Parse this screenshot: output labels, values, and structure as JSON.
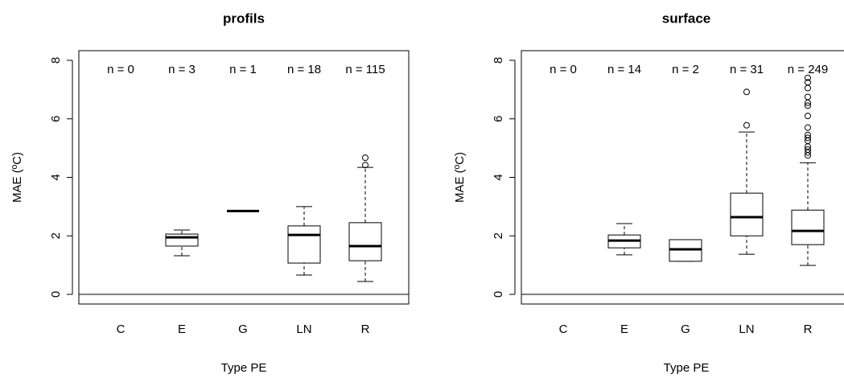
{
  "chart_data": [
    {
      "type": "box",
      "title": "profils",
      "x_label": "Type PE",
      "y_label": "MAE (ºC)",
      "categories": [
        "C",
        "E",
        "G",
        "LN",
        "R"
      ],
      "count_labels": [
        "n = 0",
        "n = 3",
        "n = 1",
        "n = 18",
        "n = 115"
      ],
      "boxes": [
        null,
        {
          "min": 1.32,
          "q1": 1.65,
          "median": 1.95,
          "q3": 2.06,
          "max": 2.2,
          "outliers": []
        },
        {
          "min": 2.85,
          "q1": 2.85,
          "median": 2.85,
          "q3": 2.85,
          "max": 2.85,
          "outliers": []
        },
        {
          "min": 0.66,
          "q1": 1.07,
          "median": 2.03,
          "q3": 2.34,
          "max": 3.0,
          "outliers": []
        },
        {
          "min": 0.44,
          "q1": 1.15,
          "median": 1.65,
          "q3": 2.45,
          "max": 4.34,
          "outliers": [
            4.42,
            4.67
          ]
        }
      ],
      "hline": 0,
      "ylim": [
        -0.33,
        8.33
      ],
      "yticks": [
        0,
        2,
        4,
        6,
        8
      ]
    },
    {
      "type": "box",
      "title": "surface",
      "x_label": "Type PE",
      "y_label": "MAE (ºC)",
      "categories": [
        "C",
        "E",
        "G",
        "LN",
        "R"
      ],
      "count_labels": [
        "n = 0",
        "n = 14",
        "n = 2",
        "n = 31",
        "n = 249"
      ],
      "boxes": [
        null,
        {
          "min": 1.35,
          "q1": 1.59,
          "median": 1.84,
          "q3": 2.03,
          "max": 2.42,
          "outliers": []
        },
        {
          "min": 1.13,
          "q1": 1.13,
          "median": 1.54,
          "q3": 1.87,
          "max": 1.87,
          "outliers": []
        },
        {
          "min": 1.37,
          "q1": 2.0,
          "median": 2.64,
          "q3": 3.46,
          "max": 5.55,
          "outliers": [
            5.78,
            6.92
          ]
        },
        {
          "min": 0.99,
          "q1": 1.7,
          "median": 2.17,
          "q3": 2.88,
          "max": 4.5,
          "outliers": [
            4.75,
            4.85,
            4.95,
            5.05,
            5.25,
            5.35,
            5.45,
            5.7,
            6.1,
            6.45,
            6.55,
            6.75,
            7.05,
            7.25,
            7.4
          ]
        }
      ],
      "hline": 0,
      "ylim": [
        -0.33,
        8.33
      ],
      "yticks": [
        0,
        2,
        4,
        6,
        8
      ]
    }
  ]
}
